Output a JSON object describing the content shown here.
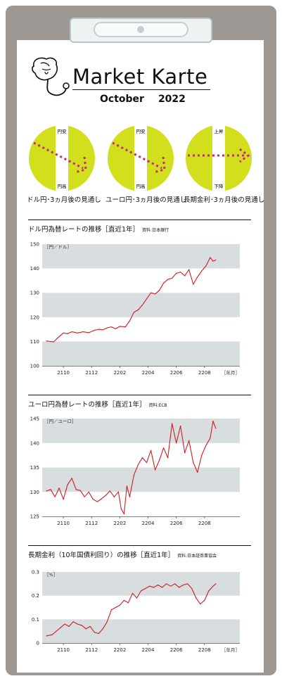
{
  "header": {
    "brand": "Market Karte",
    "month": "October",
    "year": "2022"
  },
  "indicators": [
    {
      "top": "円安",
      "bottom": "円高",
      "direction": "down",
      "caption": "ドル円･3ヵ月後の見通し"
    },
    {
      "top": "円安",
      "bottom": "円高",
      "direction": "down",
      "caption": "ユーロ円･3ヵ月後の見通し"
    },
    {
      "top": "上昇",
      "bottom": "下降",
      "direction": "flat",
      "caption": "長期金利･3ヵ月後の見通し"
    }
  ],
  "colors": {
    "accent": "#d2df1d",
    "arrow": "#c8287a",
    "line": "#d21c22",
    "band": "#d8dde0",
    "board": "#9e9894"
  },
  "chart_data": [
    {
      "type": "line",
      "title": "ドル円為替レートの推移［直近1年］",
      "source": "資料:日本銀行",
      "unit": "［円／ドル］",
      "xunit": "［年月］",
      "ylim": [
        100,
        150
      ],
      "yticks": [
        100,
        110,
        120,
        130,
        140,
        150
      ],
      "xticks": [
        "2110",
        "2112",
        "2202",
        "2204",
        "2206",
        "2208"
      ],
      "xtick_pos": [
        1.5,
        3.5,
        5.5,
        7.5,
        9.5,
        11.5
      ],
      "xrange": [
        0,
        14
      ],
      "x": [
        0.3,
        0.8,
        1.1,
        1.5,
        1.8,
        2.1,
        2.5,
        2.9,
        3.3,
        3.7,
        4.0,
        4.3,
        4.6,
        4.9,
        5.2,
        5.5,
        5.9,
        6.2,
        6.5,
        6.8,
        7.1,
        7.4,
        7.7,
        8.0,
        8.3,
        8.6,
        8.9,
        9.2,
        9.5,
        9.8,
        10.1,
        10.4,
        10.7,
        11.0,
        11.3,
        11.6,
        11.9,
        12.1,
        12.3
      ],
      "values": [
        110.2,
        109.8,
        111.5,
        113.5,
        113.2,
        114.0,
        113.5,
        114.0,
        113.6,
        114.6,
        115.0,
        114.8,
        115.6,
        116.0,
        115.2,
        116.2,
        116.0,
        118.5,
        122.0,
        123.0,
        125.0,
        127.5,
        130.0,
        129.5,
        131.0,
        134.0,
        135.5,
        136.0,
        138.0,
        138.5,
        137.0,
        139.5,
        133.5,
        136.5,
        139.0,
        141.0,
        144.5,
        143.0,
        143.5
      ]
    },
    {
      "type": "line",
      "title": "ユーロ円為替レートの推移［直近1年］",
      "source": "資料:ECB",
      "unit": "［円／ユーロ］",
      "xunit": "",
      "ylim": [
        125,
        145
      ],
      "yticks": [
        125,
        130,
        135,
        140,
        145
      ],
      "xticks": [
        "2110",
        "2112",
        "2202",
        "2204",
        "2206",
        "2208"
      ],
      "xtick_pos": [
        1.5,
        3.5,
        5.5,
        7.5,
        9.5,
        11.5
      ],
      "xrange": [
        0,
        14
      ],
      "x": [
        0.3,
        0.6,
        0.9,
        1.2,
        1.5,
        1.8,
        2.1,
        2.4,
        2.7,
        3.0,
        3.3,
        3.6,
        3.9,
        4.2,
        4.5,
        4.8,
        5.1,
        5.4,
        5.6,
        5.8,
        6.0,
        6.2,
        6.5,
        6.8,
        7.1,
        7.4,
        7.7,
        8.0,
        8.3,
        8.6,
        8.9,
        9.2,
        9.5,
        9.8,
        10.1,
        10.4,
        10.7,
        11.0,
        11.3,
        11.6,
        11.9,
        12.1,
        12.3
      ],
      "values": [
        130.2,
        130.5,
        129.0,
        130.8,
        128.5,
        131.5,
        132.8,
        130.5,
        130.3,
        129.0,
        130.0,
        128.5,
        128.0,
        128.6,
        129.3,
        130.2,
        129.0,
        130.0,
        126.5,
        125.5,
        131.2,
        129.0,
        133.5,
        135.6,
        137.0,
        136.0,
        138.5,
        134.5,
        136.5,
        139.0,
        137.0,
        144.0,
        140.0,
        143.5,
        138.0,
        140.5,
        136.0,
        134.0,
        137.5,
        139.5,
        141.0,
        144.5,
        143.0
      ]
    },
    {
      "type": "line",
      "title": "長期金利（10年国債利回り）の推移［直近1年］",
      "source": "資料:日本証券業協会",
      "unit": "［%］",
      "xunit": "［年月］",
      "ylim": [
        0,
        0.3
      ],
      "yticks": [
        0,
        0.1,
        0.2,
        0.3
      ],
      "ytick_labels": [
        "0",
        "0.1",
        "0.2",
        "0.3"
      ],
      "xticks": [
        "2110",
        "2112",
        "2202",
        "2204",
        "2206",
        "2208"
      ],
      "xtick_pos": [
        1.5,
        3.5,
        5.5,
        7.5,
        9.5,
        11.5
      ],
      "xrange": [
        0,
        14
      ],
      "x": [
        0.3,
        0.7,
        1.0,
        1.3,
        1.6,
        1.9,
        2.2,
        2.5,
        2.8,
        3.1,
        3.4,
        3.7,
        4.0,
        4.3,
        4.6,
        4.9,
        5.2,
        5.5,
        5.8,
        6.1,
        6.4,
        6.7,
        7.0,
        7.3,
        7.6,
        7.9,
        8.2,
        8.5,
        8.8,
        9.1,
        9.4,
        9.7,
        10.0,
        10.3,
        10.6,
        10.9,
        11.2,
        11.5,
        11.8,
        12.1,
        12.3
      ],
      "values": [
        0.03,
        0.035,
        0.05,
        0.065,
        0.08,
        0.07,
        0.09,
        0.08,
        0.075,
        0.06,
        0.07,
        0.045,
        0.04,
        0.06,
        0.09,
        0.14,
        0.15,
        0.16,
        0.18,
        0.17,
        0.21,
        0.19,
        0.22,
        0.23,
        0.24,
        0.235,
        0.245,
        0.235,
        0.25,
        0.24,
        0.25,
        0.235,
        0.245,
        0.25,
        0.23,
        0.19,
        0.165,
        0.18,
        0.22,
        0.24,
        0.25
      ]
    }
  ]
}
